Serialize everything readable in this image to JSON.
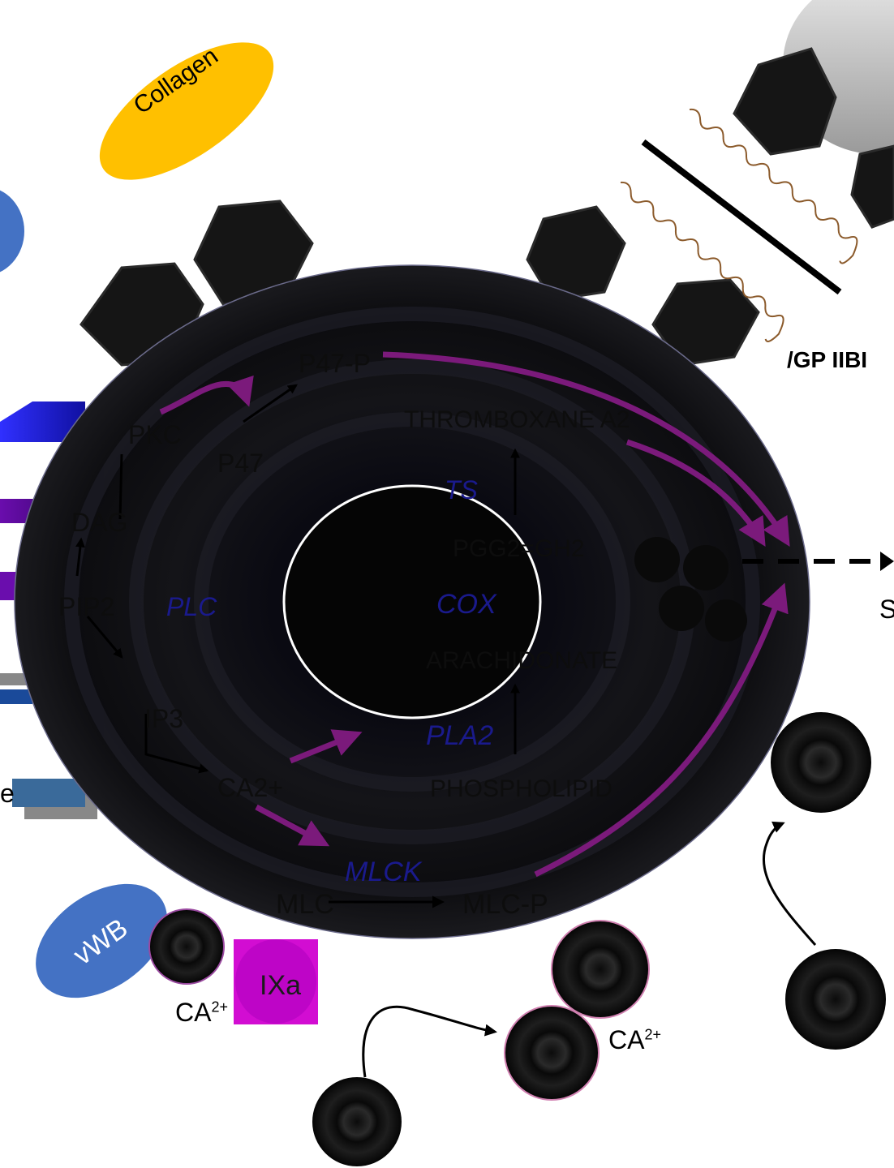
{
  "ellipses": {
    "collagen": "Collagen",
    "vwb": "vWB"
  },
  "receptor_label": "/GP IIBI",
  "pathway": {
    "p47p": "P47-P",
    "pkc": "PKC",
    "p47": "P47",
    "dag": "DAG",
    "pip2": "PIP2",
    "plc": "PLC",
    "ip3": "IP3",
    "ca2_inner": "CA2+",
    "thromboxane": "THROMBOXANE A2",
    "ts": "TS",
    "pgg2": "PGG2=GH2",
    "cox": "COX",
    "arachidonate": "ARACHIDONATE",
    "pla2": "PLA2",
    "phospholipid": "PHOSPHOLIPID",
    "mlck": "MLCK",
    "mlc": "MLC",
    "mlcp": "MLC-P"
  },
  "cascade": {
    "ixa": "IXa",
    "ca_left": "CA",
    "ca_right": "CA",
    "ca_sup": "2+"
  },
  "edge_text": {
    "right_s": "S",
    "left_e": "e"
  },
  "colors": {
    "collagen": "#ffc000",
    "vwb": "#4472c4",
    "arrow_purple": "#7b1a7b",
    "ixa": "#d000d0",
    "membrane": "#121212"
  }
}
